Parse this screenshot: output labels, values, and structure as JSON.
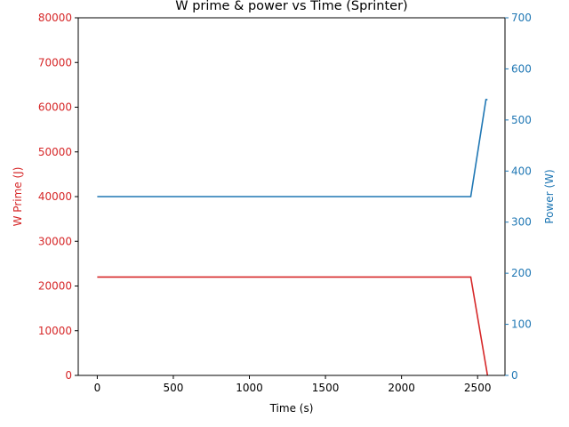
{
  "chart_data": {
    "type": "line",
    "title": "W prime & power vs Time (Sprinter)",
    "xlabel": "Time (s)",
    "xlim": [
      -125,
      2680
    ],
    "xticks": [
      0,
      500,
      1000,
      1500,
      2000,
      2500
    ],
    "left_axis": {
      "label": "W Prime (J)",
      "color": "#d62728",
      "ylim": [
        0,
        80000
      ],
      "ticks": [
        0,
        10000,
        20000,
        30000,
        40000,
        50000,
        60000,
        70000,
        80000
      ]
    },
    "right_axis": {
      "label": "Power (W)",
      "color": "#1f77b4",
      "ylim": [
        0,
        700
      ],
      "ticks": [
        0,
        100,
        200,
        300,
        400,
        500,
        600,
        700
      ]
    },
    "series": [
      {
        "axis": "left",
        "color": "#d62728",
        "x": [
          0,
          2455,
          2560,
          2565
        ],
        "y": [
          22000,
          22000,
          1000,
          0
        ]
      },
      {
        "axis": "right",
        "color": "#1f77b4",
        "x": [
          0,
          2455,
          2555,
          2565
        ],
        "y": [
          350,
          350,
          540,
          540
        ]
      }
    ],
    "grid": false,
    "legend": "none"
  }
}
